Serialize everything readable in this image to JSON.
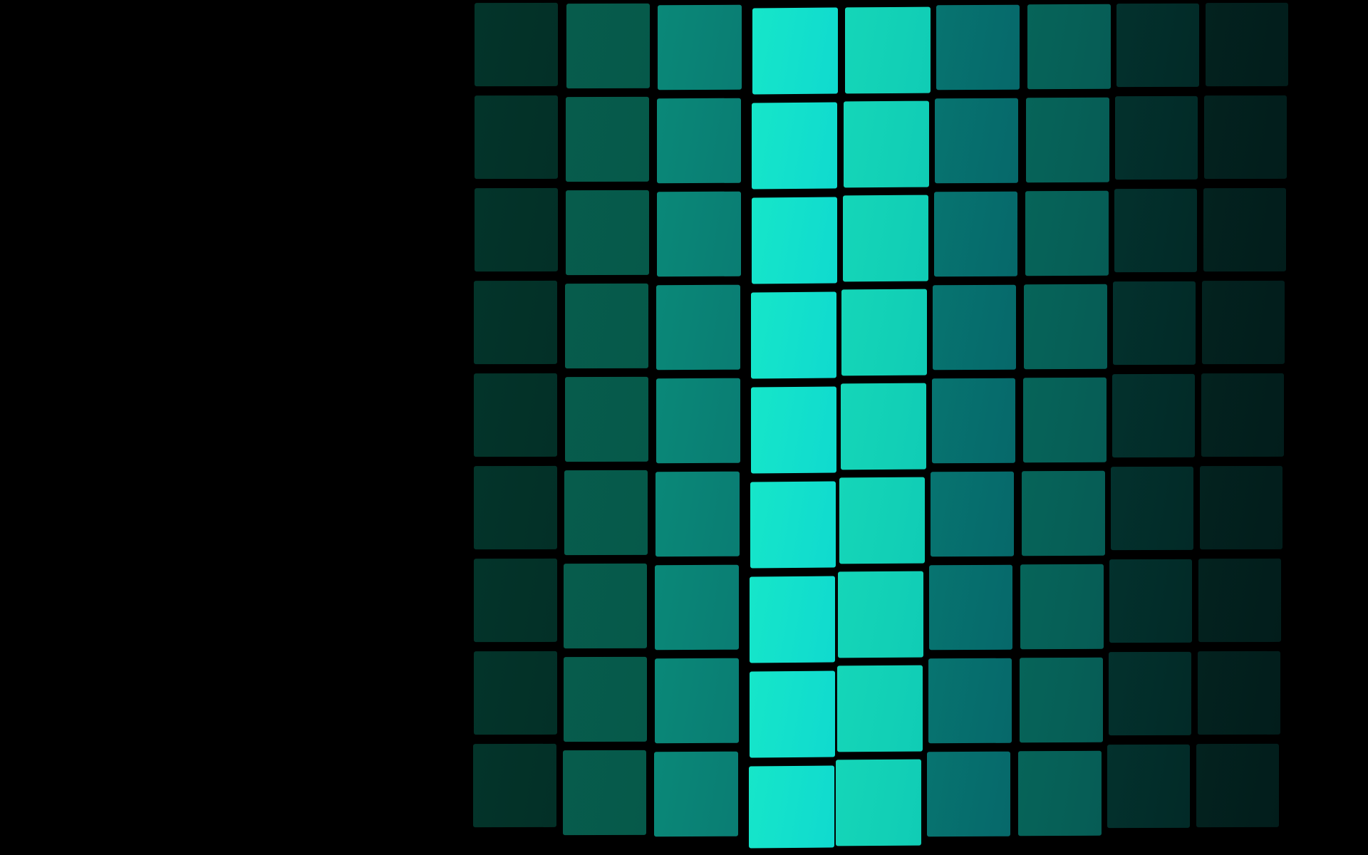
{
  "wallpaper": {
    "background_color": "#000000",
    "description_colors": {
      "columns": [
        [
          "#03342a",
          "#033027"
        ],
        [
          "#075c4c",
          "#06594a"
        ],
        [
          "#0a8878",
          "#0a7d73"
        ],
        [
          "#16e6c9",
          "#10dacf"
        ],
        [
          "#15d6b8",
          "#10ccb5"
        ],
        [
          "#077470",
          "#06686a"
        ],
        [
          "#066459",
          "#065c55"
        ],
        [
          "#03312d",
          "#022a27"
        ],
        [
          "#03221f",
          "#021d1b"
        ]
      ]
    },
    "grid": {
      "columns": 9,
      "rows": 9
    }
  }
}
